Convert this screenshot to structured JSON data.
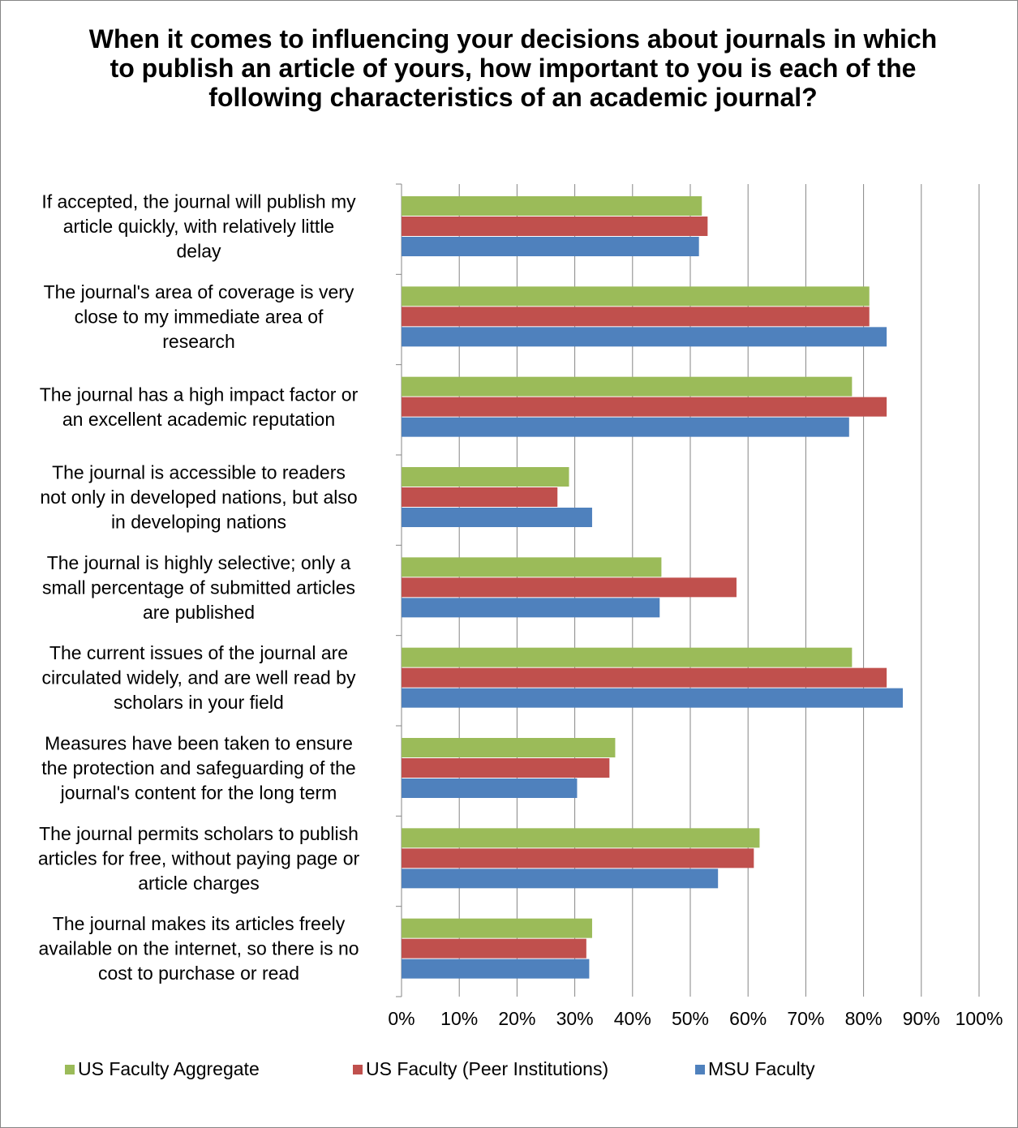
{
  "chart_data": {
    "type": "bar",
    "orientation": "horizontal",
    "title": "When it comes to influencing your decisions about journals in which to publish an article of yours, how important to you is each of the following characteristics of an academic journal?",
    "xlabel": "",
    "ylabel": "",
    "xlim": [
      0,
      100
    ],
    "x_ticks": [
      "0%",
      "10%",
      "20%",
      "30%",
      "40%",
      "50%",
      "60%",
      "70%",
      "80%",
      "90%",
      "100%"
    ],
    "grid": "vertical major gridlines",
    "legend_position": "bottom",
    "categories": [
      [
        "If accepted, the journal will publish my",
        "article quickly, with relatively little",
        "delay"
      ],
      [
        "The journal's area of coverage is very",
        "close to my immediate area of",
        "research"
      ],
      [
        "The journal has a high impact factor or",
        "an excellent academic reputation"
      ],
      [
        "The journal is accessible to readers",
        "not only in developed nations, but also",
        "in developing nations"
      ],
      [
        "The journal is highly selective; only a",
        "small percentage of submitted articles",
        "are published"
      ],
      [
        "The current issues of the journal are",
        "circulated widely, and are well read by",
        "scholars in your field"
      ],
      [
        "Measures have been taken to ensure",
        "the protection and safeguarding of the",
        "journal's content for the long term"
      ],
      [
        "The journal permits scholars to publish",
        "articles for free, without paying page or",
        "article charges"
      ],
      [
        "The journal makes its articles freely",
        "available on the internet, so there is no",
        "cost to purchase or read"
      ]
    ],
    "series": [
      {
        "name": "US Faculty Aggregate",
        "color": "#9BBB59",
        "values": [
          52,
          81,
          78,
          29,
          45,
          78,
          37,
          62,
          33
        ]
      },
      {
        "name": "US Faculty (Peer Institutions)",
        "color": "#C0504D",
        "values": [
          53,
          81,
          84,
          27,
          58,
          84,
          36,
          61,
          32
        ]
      },
      {
        "name": "MSU Faculty",
        "color": "#4F81BD",
        "values": [
          51.5,
          84,
          77.5,
          33,
          44.7,
          86.8,
          30.4,
          54.8,
          32.5
        ]
      }
    ]
  }
}
